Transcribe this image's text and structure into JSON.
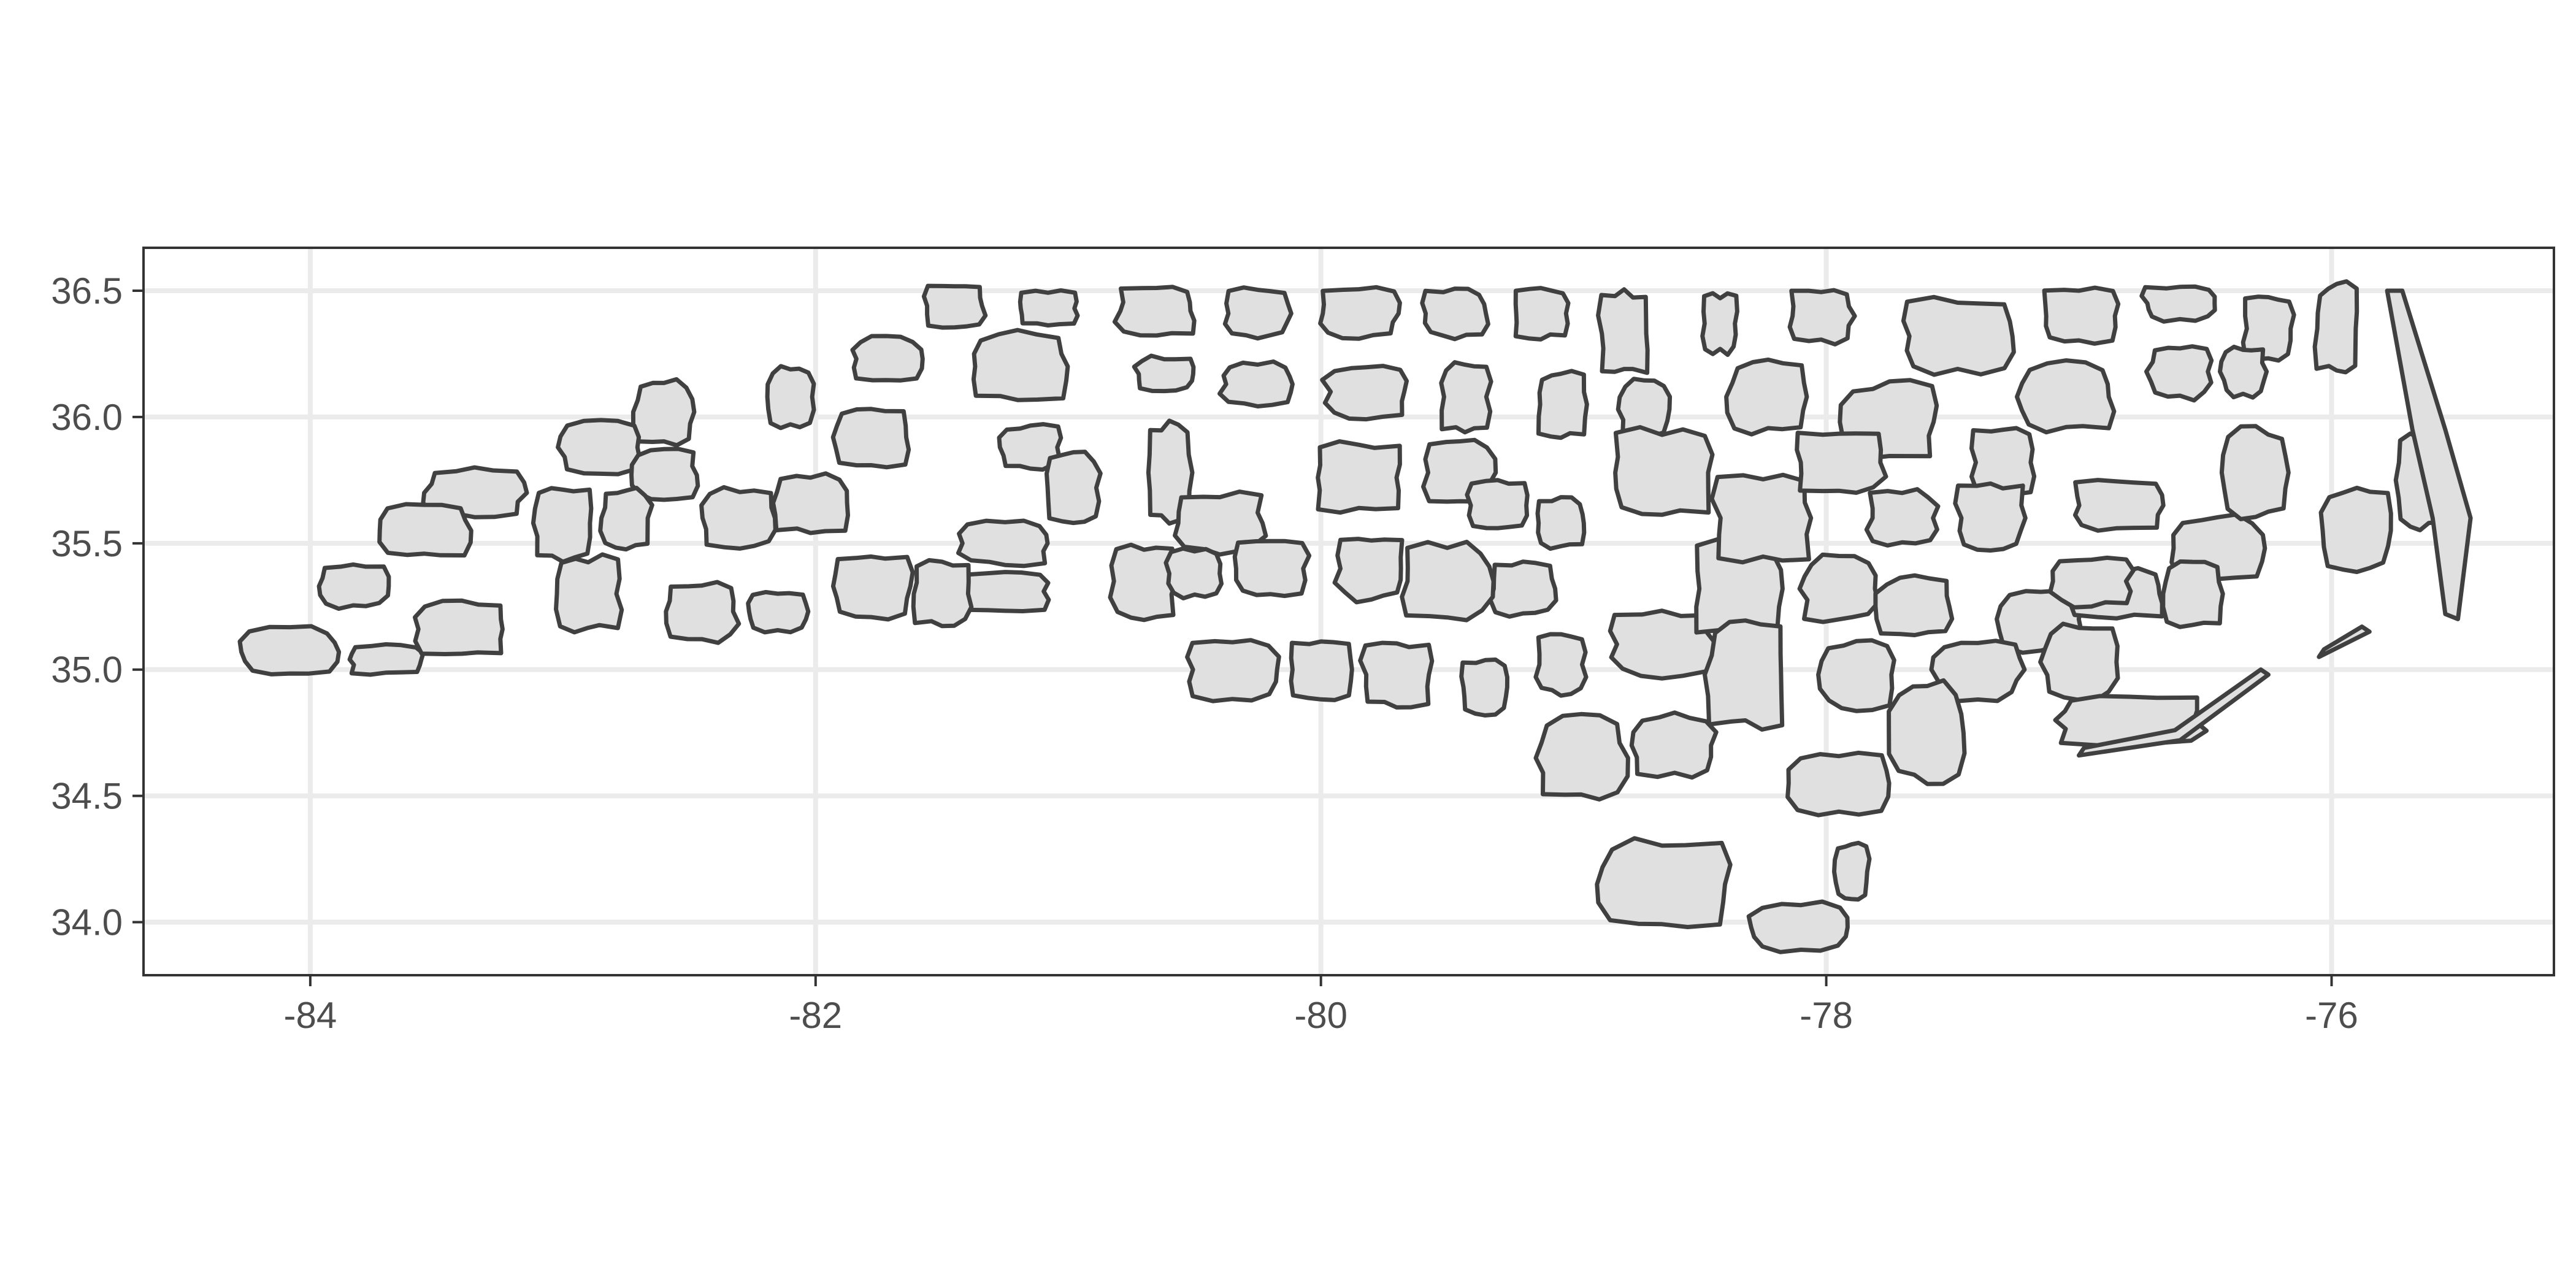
{
  "map": {
    "type": "choropleth-outline",
    "region": "North Carolina counties",
    "xlim": [
      -84.66,
      -75.12
    ],
    "ylim": [
      33.79,
      36.67
    ],
    "x_ticks": [
      -84,
      -82,
      -80,
      -78,
      -76
    ],
    "y_ticks": [
      34.0,
      34.5,
      35.0,
      35.5,
      36.0,
      36.5
    ],
    "x_tick_labels": [
      "-84",
      "-82",
      "-80",
      "-78",
      "-76"
    ],
    "y_tick_labels": [
      "34.0",
      "34.5",
      "35.0",
      "35.5",
      "36.0",
      "36.5"
    ],
    "grid": true,
    "fill_color": "#e0e0e0",
    "outline_color": "#404040",
    "grid_color": "#ebebeb",
    "county_count": 100
  },
  "chart_data": {
    "type": "map",
    "title": "",
    "xlabel": "",
    "ylabel": "",
    "xlim": [
      -84.66,
      -75.12
    ],
    "ylim": [
      33.79,
      36.67
    ],
    "grid": true
  }
}
